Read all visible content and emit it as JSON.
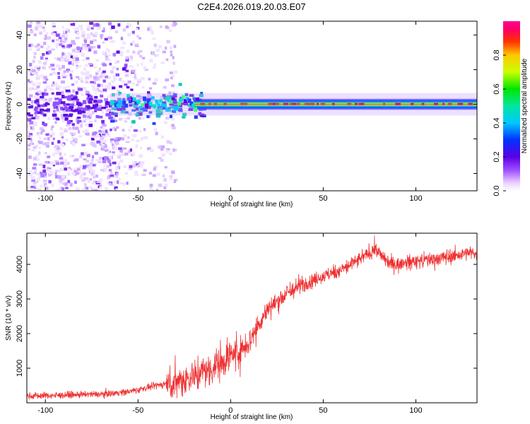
{
  "title": "C2E4.2026.019.20.03.E07",
  "colors": {
    "series": "#ef3030",
    "axis": "#000000"
  },
  "chart_data": [
    {
      "type": "heatmap",
      "xlabel": "Height of straight line (km)",
      "ylabel": "Frequency (Hz)",
      "xlim": [
        -110,
        133
      ],
      "ylim": [
        -50,
        48
      ],
      "xticks": [
        -100,
        -50,
        0,
        50,
        100
      ],
      "yticks": [
        -40,
        -20,
        0,
        20,
        40
      ],
      "colorbar": {
        "label": "Normalized spectral amplitude",
        "range": [
          0,
          1
        ],
        "ticks": [
          "0.0",
          "0.2",
          "0.4",
          "0.6",
          "0.8"
        ],
        "colormap": "rainbow (white, violet, blue, cyan, green, yellow, red, magenta)"
      },
      "features": {
        "scattered_noise_x_range_km": [
          -110,
          -30
        ],
        "main_band_frequency_hz": 0,
        "main_band_start_km": -65,
        "peak_amplitude_start_km": -20
      }
    },
    {
      "type": "line",
      "xlabel": "Height of straight line (km)",
      "ylabel": "SNR (10 * v/v)",
      "xlim": [
        -110,
        133
      ],
      "ylim": [
        0,
        4900
      ],
      "xticks": [
        -100,
        -50,
        0,
        50,
        100
      ],
      "yticks": [
        1000,
        2000,
        3000,
        4000
      ],
      "series": [
        {
          "name": "SNR",
          "x": [
            -110,
            -90,
            -70,
            -55,
            -40,
            -30,
            -20,
            -15,
            -10,
            -5,
            0,
            5,
            10,
            15,
            20,
            30,
            40,
            50,
            60,
            70,
            78,
            85,
            90,
            100,
            110,
            120,
            133
          ],
          "y": [
            200,
            220,
            250,
            320,
            500,
            600,
            780,
            900,
            1000,
            1200,
            1350,
            1500,
            1800,
            2250,
            2700,
            3150,
            3450,
            3650,
            3850,
            4150,
            4450,
            4050,
            4000,
            4100,
            4150,
            4250,
            4350
          ]
        }
      ]
    }
  ]
}
